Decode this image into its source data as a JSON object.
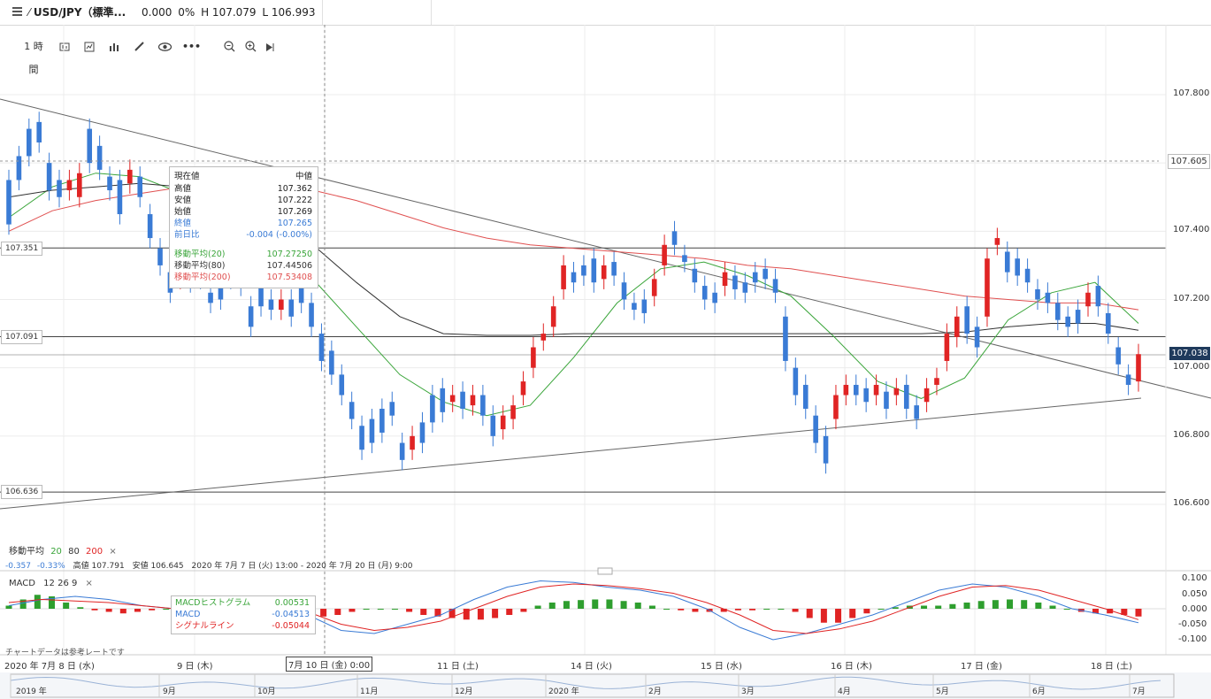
{
  "header": {
    "symbol": "USD/JPY（標準...",
    "change": "0.000",
    "change_pct": "0%",
    "high": "H 107.079",
    "low": "L 106.993"
  },
  "toolbar": {
    "interval": "1 時間",
    "icons": [
      "menu-icon",
      "pencil-icon",
      "candles-icon",
      "indicators-icon",
      "bar-chart-icon",
      "draw-icon",
      "eye-icon",
      "more-icon",
      "zoom-out-icon",
      "zoom-in-icon",
      "play-icon"
    ]
  },
  "colors": {
    "up": "#e02424",
    "down": "#3a7bd5",
    "ma20": "#3aa53a",
    "ma80": "#333333",
    "ma200": "#e05050",
    "grid": "#ececec",
    "hline": "#444444"
  },
  "chart_data": [
    {
      "type": "line",
      "kind": "candlestick",
      "symbol": "USD/JPY",
      "y_ticks": [
        "107.800",
        "107.605",
        "107.400",
        "107.200",
        "107.000",
        "106.800",
        "106.600"
      ],
      "ylim": [
        106.55,
        107.88
      ],
      "x_labels": [
        "2020 年 7月 8 日 (水)",
        "9 日 (木)",
        "7月 10 日 (金) 0:00",
        "11 日 (土)",
        "14 日 (火)",
        "15 日 (水)",
        "16 日 (木)",
        "17 日 (金)",
        "18 日 (土)"
      ],
      "horizontal_levels": [
        {
          "label": "107.351",
          "value": 107.351
        },
        {
          "label": "107.091",
          "value": 107.091
        },
        {
          "label": "106.636",
          "value": 106.636
        },
        {
          "label": "107.605",
          "value": 107.605
        },
        {
          "label": "107.038",
          "value": 107.038
        }
      ],
      "current_price": "107.038",
      "series": [
        {
          "name": "移動平均(20)",
          "values": [
            107.44,
            107.53,
            107.57,
            107.56,
            107.51,
            107.44,
            107.36,
            107.26,
            107.12,
            106.98,
            106.9,
            106.86,
            106.89,
            107.03,
            107.19,
            107.29,
            107.31,
            107.27,
            107.21,
            107.09,
            106.96,
            106.91,
            106.97,
            107.14,
            107.22,
            107.25,
            107.13
          ]
        },
        {
          "name": "移動平均(80)",
          "values": [
            107.5,
            107.52,
            107.53,
            107.54,
            107.53,
            107.5,
            107.45,
            107.36,
            107.25,
            107.15,
            107.1,
            107.095,
            107.095,
            107.1,
            107.1,
            107.1,
            107.1,
            107.1,
            107.1,
            107.1,
            107.1,
            107.1,
            107.105,
            107.12,
            107.13,
            107.13,
            107.11
          ]
        },
        {
          "name": "移動平均(200)",
          "values": [
            107.4,
            107.46,
            107.49,
            107.51,
            107.53,
            107.54,
            107.54,
            107.52,
            107.49,
            107.45,
            107.41,
            107.38,
            107.36,
            107.35,
            107.34,
            107.33,
            107.32,
            107.3,
            107.29,
            107.27,
            107.25,
            107.23,
            107.21,
            107.2,
            107.19,
            107.19,
            107.17
          ]
        }
      ],
      "candles": [
        [
          107.55,
          107.42
        ],
        [
          107.62,
          107.55
        ],
        [
          107.7,
          107.62
        ],
        [
          107.72,
          107.66
        ],
        [
          107.6,
          107.52
        ],
        [
          107.55,
          107.5
        ],
        [
          107.52,
          107.55
        ],
        [
          107.5,
          107.57
        ],
        [
          107.7,
          107.6
        ],
        [
          107.65,
          107.58
        ],
        [
          107.56,
          107.52
        ],
        [
          107.55,
          107.45
        ],
        [
          107.54,
          107.58
        ],
        [
          107.56,
          107.5
        ],
        [
          107.45,
          107.38
        ],
        [
          107.35,
          107.3
        ],
        [
          107.28,
          107.22
        ],
        [
          107.26,
          107.32
        ],
        [
          107.3,
          107.25
        ],
        [
          107.31,
          107.26
        ],
        [
          107.22,
          107.19
        ],
        [
          107.25,
          107.2
        ],
        [
          107.32,
          107.26
        ],
        [
          107.3,
          107.24
        ],
        [
          107.18,
          107.12
        ],
        [
          107.28,
          107.18
        ],
        [
          107.2,
          107.17
        ],
        [
          107.17,
          107.2
        ],
        [
          107.2,
          107.15
        ],
        [
          107.24,
          107.19
        ],
        [
          107.19,
          107.12
        ],
        [
          107.1,
          107.02
        ],
        [
          107.05,
          106.98
        ],
        [
          106.98,
          106.92
        ],
        [
          106.9,
          106.85
        ],
        [
          106.83,
          106.76
        ],
        [
          106.85,
          106.78
        ],
        [
          106.88,
          106.81
        ],
        [
          106.9,
          106.86
        ],
        [
          106.78,
          106.73
        ],
        [
          106.76,
          106.8
        ],
        [
          106.84,
          106.78
        ],
        [
          106.92,
          106.84
        ],
        [
          106.94,
          106.87
        ],
        [
          106.9,
          106.92
        ],
        [
          106.93,
          106.88
        ],
        [
          106.89,
          106.92
        ],
        [
          106.92,
          106.86
        ],
        [
          106.86,
          106.8
        ],
        [
          106.82,
          106.86
        ],
        [
          106.85,
          106.89
        ],
        [
          106.92,
          106.96
        ],
        [
          107.0,
          107.06
        ],
        [
          107.08,
          107.1
        ],
        [
          107.12,
          107.18
        ],
        [
          107.23,
          107.3
        ],
        [
          107.28,
          107.25
        ],
        [
          107.3,
          107.27
        ],
        [
          107.32,
          107.25
        ],
        [
          107.26,
          107.3
        ],
        [
          107.31,
          107.27
        ],
        [
          107.25,
          107.2
        ],
        [
          107.19,
          107.17
        ],
        [
          107.2,
          107.16
        ],
        [
          107.21,
          107.26
        ],
        [
          107.3,
          107.36
        ],
        [
          107.4,
          107.36
        ],
        [
          107.33,
          107.31
        ],
        [
          107.29,
          107.25
        ],
        [
          107.24,
          107.2
        ],
        [
          107.22,
          107.19
        ],
        [
          107.24,
          107.28
        ],
        [
          107.27,
          107.23
        ],
        [
          107.25,
          107.22
        ],
        [
          107.28,
          107.25
        ],
        [
          107.29,
          107.26
        ],
        [
          107.26,
          107.22
        ],
        [
          107.15,
          107.02
        ],
        [
          107.0,
          106.92
        ],
        [
          106.95,
          106.88
        ],
        [
          106.86,
          106.78
        ],
        [
          106.8,
          106.72
        ],
        [
          106.85,
          106.92
        ],
        [
          106.92,
          106.95
        ],
        [
          106.95,
          106.92
        ],
        [
          106.94,
          106.9
        ],
        [
          106.92,
          106.95
        ],
        [
          106.93,
          106.88
        ],
        [
          106.92,
          106.94
        ],
        [
          106.95,
          106.88
        ],
        [
          106.89,
          106.85
        ],
        [
          106.9,
          106.94
        ],
        [
          106.95,
          106.97
        ],
        [
          107.02,
          107.1
        ],
        [
          107.09,
          107.15
        ],
        [
          107.18,
          107.1
        ],
        [
          107.12,
          107.06
        ],
        [
          107.15,
          107.32
        ],
        [
          107.36,
          107.38
        ],
        [
          107.34,
          107.28
        ],
        [
          107.32,
          107.27
        ],
        [
          107.29,
          107.25
        ],
        [
          107.23,
          107.2
        ],
        [
          107.22,
          107.19
        ],
        [
          107.19,
          107.14
        ],
        [
          107.15,
          107.12
        ],
        [
          107.17,
          107.13
        ],
        [
          107.18,
          107.22
        ],
        [
          107.24,
          107.18
        ],
        [
          107.16,
          107.1
        ],
        [
          107.06,
          107.01
        ],
        [
          106.98,
          106.95
        ],
        [
          106.96,
          107.04
        ]
      ]
    },
    {
      "type": "bar",
      "kind": "macd",
      "params": "12 26 9",
      "y_ticks": [
        "0.100",
        "0.050",
        "0.000",
        "-0.050",
        "-0.100"
      ],
      "ylim": [
        -0.125,
        0.12
      ],
      "series": [
        {
          "name": "MACDヒストグラム",
          "values": [
            0.01,
            0.03,
            0.045,
            0.04,
            0.02,
            0.005,
            -0.005,
            -0.01,
            -0.015,
            -0.01,
            -0.005,
            0.0,
            0.0,
            -0.01,
            -0.02,
            -0.03,
            -0.035,
            -0.03,
            -0.025,
            -0.02,
            -0.02,
            -0.02,
            -0.025,
            -0.02,
            -0.01,
            0.0,
            0.0,
            0.0,
            -0.01,
            -0.02,
            -0.025,
            -0.03,
            -0.035,
            -0.035,
            -0.03,
            -0.02,
            -0.01,
            0.01,
            0.02,
            0.025,
            0.028,
            0.03,
            0.03,
            0.025,
            0.02,
            0.01,
            0.0,
            -0.005,
            -0.01,
            -0.01,
            -0.01,
            -0.005,
            -0.005,
            0.0,
            0.0,
            -0.01,
            -0.03,
            -0.045,
            -0.045,
            -0.03,
            -0.015,
            0.0,
            0.005,
            0.01,
            0.01,
            0.01,
            0.015,
            0.02,
            0.025,
            0.028,
            0.03,
            0.028,
            0.02,
            0.01,
            0.0,
            -0.01,
            -0.015,
            -0.015,
            -0.02,
            -0.025
          ]
        },
        {
          "name": "MACD",
          "values": [
            0.01,
            0.03,
            0.04,
            0.03,
            0.01,
            0.0,
            0.0,
            0.0,
            0.0,
            -0.02,
            -0.07,
            -0.08,
            -0.05,
            -0.02,
            0.03,
            0.07,
            0.09,
            0.085,
            0.07,
            0.06,
            0.04,
            0.0,
            -0.06,
            -0.1,
            -0.08,
            -0.05,
            -0.02,
            0.02,
            0.06,
            0.08,
            0.07,
            0.04,
            0.0,
            -0.02,
            -0.045
          ]
        },
        {
          "name": "シグナルライン",
          "values": [
            0.02,
            0.03,
            0.025,
            0.02,
            0.01,
            0.0,
            0.0,
            0.0,
            0.0,
            -0.01,
            -0.05,
            -0.07,
            -0.06,
            -0.04,
            0.0,
            0.04,
            0.07,
            0.08,
            0.075,
            0.065,
            0.05,
            0.02,
            -0.02,
            -0.07,
            -0.08,
            -0.065,
            -0.04,
            0.0,
            0.04,
            0.07,
            0.075,
            0.06,
            0.03,
            0.0,
            -0.035
          ]
        }
      ]
    }
  ],
  "tooltip": {
    "title_k": "現在値",
    "title_v": "中値",
    "rows": [
      {
        "k": "高値",
        "v": "107.362"
      },
      {
        "k": "安値",
        "v": "107.222"
      },
      {
        "k": "始値",
        "v": "107.269"
      },
      {
        "k": "終値",
        "v": "107.265"
      },
      {
        "k": "前日比",
        "v": "-0.004 (-0.00%)"
      },
      {
        "k": "移動平均(20)",
        "v": "107.27250"
      },
      {
        "k": "移動平均(80)",
        "v": "107.44506"
      },
      {
        "k": "移動平均(200)",
        "v": "107.53408"
      }
    ]
  },
  "ma_legend": {
    "label": "移動平均",
    "p1": "20",
    "p2": "80",
    "p3": "200",
    "close": "×"
  },
  "stats_line": {
    "change": "-0.357",
    "pct": "-0.33%",
    "high": "高値 107.791",
    "low": "安値 106.645",
    "range": "2020 年 7月 7 日 (火) 13:00 - 2020 年 7月 20 日 (月) 9:00"
  },
  "macd_legend": {
    "label": "MACD",
    "params": "12  26  9",
    "close": "×"
  },
  "macd_tooltip": {
    "rows": [
      {
        "k": "MACDヒストグラム",
        "v": "0.00531"
      },
      {
        "k": "MACD",
        "v": "-0.04513"
      },
      {
        "k": "シグナルライン",
        "v": "-0.05044"
      }
    ]
  },
  "disclaimer": "チャートデータは参考レートです",
  "navigator_labels": [
    "2019 年",
    "9月",
    "10月",
    "11月",
    "12月",
    "2020 年",
    "2月",
    "3月",
    "4月",
    "5月",
    "6月",
    "7月"
  ]
}
